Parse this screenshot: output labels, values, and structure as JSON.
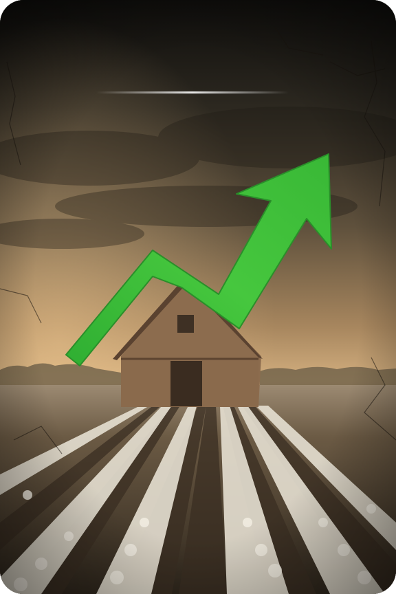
{
  "scene": {
    "colors": {
      "sky_top": "#141210",
      "sky_mid": "#4a4030",
      "horizon": "#c9a475",
      "field": "#5a4a36",
      "barn": "#8a6a4c",
      "barn_dark": "#5c4430",
      "arrow": "#3ec23a",
      "arrow_edge": "#2a8f2a",
      "cotton": "#e8e2d6"
    },
    "icons": {
      "arrow": "trend-up-arrow-icon",
      "barn": "barn-illustration"
    }
  }
}
